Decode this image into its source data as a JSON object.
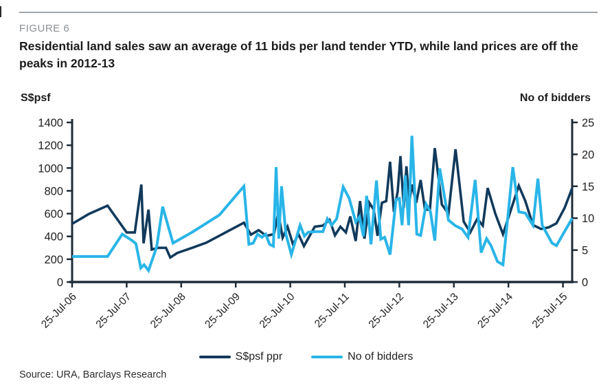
{
  "figure_label": "FIGURE 6",
  "title": "Residential land sales saw an average of 11 bids per land tender YTD, while land prices are off the peaks in 2012-13",
  "source": "Source: URA, Barclays Research",
  "colors": {
    "psf_line": "#113a5b",
    "bidders_line": "#29b5e8",
    "axis": "#1e2c38",
    "tick_text": "#1f1f1f",
    "figure_label": "#8b9094",
    "rule": "#a0a4a8"
  },
  "chart_data": {
    "type": "line",
    "title": "Residential land sales: price vs bids per land tender",
    "x_unit": "years since 25-Jul-06",
    "grid": false,
    "legend_position": "bottom-center",
    "x_tick_labels": [
      "25-Jul-06",
      "25-Jul-07",
      "25-Jul-08",
      "25-Jul-09",
      "25-Jul-10",
      "25-Jul-11",
      "25-Jul-12",
      "25-Jul-13",
      "25-Jul-14",
      "25-Jul-15"
    ],
    "left_axis": {
      "label": "S$psf",
      "min": 0,
      "max": 1400,
      "step": 200,
      "tick_labels": [
        "0",
        "200",
        "400",
        "600",
        "800",
        "1000",
        "1200",
        "1400"
      ]
    },
    "right_axis": {
      "label": "No of bidders",
      "min": 0,
      "max": 25,
      "step": 5,
      "tick_labels": [
        "0",
        "5",
        "10",
        "15",
        "20",
        "25"
      ]
    },
    "legend": [
      "S$psf ppr",
      "No of bidders"
    ],
    "series": [
      {
        "name": "S$psf ppr",
        "axis": "left",
        "color": "#113a5b",
        "points": [
          [
            0,
            510
          ],
          [
            0.3,
            595
          ],
          [
            0.65,
            670
          ],
          [
            1.0,
            435
          ],
          [
            1.15,
            435
          ],
          [
            1.27,
            855
          ],
          [
            1.31,
            340
          ],
          [
            1.4,
            635
          ],
          [
            1.46,
            285
          ],
          [
            1.58,
            300
          ],
          [
            1.72,
            300
          ],
          [
            1.8,
            215
          ],
          [
            1.93,
            255
          ],
          [
            2.2,
            300
          ],
          [
            2.46,
            345
          ],
          [
            3.15,
            520
          ],
          [
            3.28,
            415
          ],
          [
            3.42,
            455
          ],
          [
            3.56,
            405
          ],
          [
            3.7,
            420
          ],
          [
            3.78,
            605
          ],
          [
            3.86,
            390
          ],
          [
            3.95,
            485
          ],
          [
            4.05,
            330
          ],
          [
            4.15,
            420
          ],
          [
            4.25,
            315
          ],
          [
            4.45,
            485
          ],
          [
            4.6,
            495
          ],
          [
            4.72,
            545
          ],
          [
            4.82,
            410
          ],
          [
            4.92,
            485
          ],
          [
            5.02,
            435
          ],
          [
            5.1,
            575
          ],
          [
            5.2,
            360
          ],
          [
            5.28,
            710
          ],
          [
            5.36,
            380
          ],
          [
            5.45,
            695
          ],
          [
            5.53,
            635
          ],
          [
            5.6,
            405
          ],
          [
            5.68,
            695
          ],
          [
            5.76,
            710
          ],
          [
            5.83,
            1055
          ],
          [
            5.9,
            615
          ],
          [
            5.97,
            795
          ],
          [
            6.02,
            1105
          ],
          [
            6.08,
            650
          ],
          [
            6.13,
            1015
          ],
          [
            6.18,
            695
          ],
          [
            6.23,
            855
          ],
          [
            6.31,
            695
          ],
          [
            6.39,
            895
          ],
          [
            6.47,
            635
          ],
          [
            6.56,
            635
          ],
          [
            6.65,
            1175
          ],
          [
            6.78,
            680
          ],
          [
            6.9,
            600
          ],
          [
            7.03,
            1165
          ],
          [
            7.18,
            530
          ],
          [
            7.3,
            435
          ],
          [
            7.43,
            555
          ],
          [
            7.53,
            495
          ],
          [
            7.62,
            825
          ],
          [
            7.76,
            600
          ],
          [
            7.9,
            420
          ],
          [
            8.19,
            845
          ],
          [
            8.31,
            710
          ],
          [
            8.45,
            500
          ],
          [
            8.6,
            465
          ],
          [
            8.74,
            480
          ],
          [
            8.88,
            515
          ],
          [
            9.03,
            650
          ],
          [
            9.17,
            825
          ]
        ]
      },
      {
        "name": "No of bidders",
        "axis": "right",
        "color": "#29b5e8",
        "points": [
          [
            0,
            4
          ],
          [
            0.65,
            4
          ],
          [
            0.92,
            7.5
          ],
          [
            1.1,
            6.5
          ],
          [
            1.17,
            6.0
          ],
          [
            1.26,
            2.2
          ],
          [
            1.32,
            2.7
          ],
          [
            1.4,
            1.8
          ],
          [
            1.55,
            5.5
          ],
          [
            1.66,
            11.8
          ],
          [
            1.85,
            6.1
          ],
          [
            2.2,
            7.8
          ],
          [
            2.7,
            10.5
          ],
          [
            3.15,
            15
          ],
          [
            3.24,
            5.9
          ],
          [
            3.32,
            6.1
          ],
          [
            3.4,
            7.5
          ],
          [
            3.48,
            7.0
          ],
          [
            3.55,
            7.5
          ],
          [
            3.62,
            5.9
          ],
          [
            3.69,
            5.6
          ],
          [
            3.74,
            18
          ],
          [
            3.79,
            6.8
          ],
          [
            3.84,
            15
          ],
          [
            3.92,
            7.5
          ],
          [
            4.02,
            4.3
          ],
          [
            4.18,
            8.9
          ],
          [
            4.26,
            7.2
          ],
          [
            4.33,
            7.8
          ],
          [
            4.47,
            7.9
          ],
          [
            4.6,
            7.9
          ],
          [
            4.68,
            9.9
          ],
          [
            4.76,
            8.9
          ],
          [
            4.85,
            9.9
          ],
          [
            4.97,
            14.9
          ],
          [
            5.08,
            13.1
          ],
          [
            5.2,
            9.4
          ],
          [
            5.27,
            10.2
          ],
          [
            5.34,
            7.2
          ],
          [
            5.4,
            13.5
          ],
          [
            5.48,
            5.9
          ],
          [
            5.58,
            15.9
          ],
          [
            5.66,
            6.7
          ],
          [
            5.73,
            7.0
          ],
          [
            5.83,
            4.3
          ],
          [
            5.94,
            12.9
          ],
          [
            6.0,
            13.1
          ],
          [
            6.05,
            8.9
          ],
          [
            6.11,
            16.7
          ],
          [
            6.17,
            8.9
          ],
          [
            6.23,
            22.9
          ],
          [
            6.32,
            7.5
          ],
          [
            6.39,
            7.3
          ],
          [
            6.49,
            12.2
          ],
          [
            6.57,
            11.0
          ],
          [
            6.65,
            6.5
          ],
          [
            6.74,
            17.8
          ],
          [
            6.9,
            9.7
          ],
          [
            7.03,
            8.8
          ],
          [
            7.15,
            8.3
          ],
          [
            7.26,
            7.0
          ],
          [
            7.39,
            16.0
          ],
          [
            7.5,
            4.6
          ],
          [
            7.6,
            6.8
          ],
          [
            7.68,
            5.7
          ],
          [
            7.8,
            3.2
          ],
          [
            7.9,
            2.7
          ],
          [
            8.08,
            18.0
          ],
          [
            8.19,
            11.0
          ],
          [
            8.31,
            10.8
          ],
          [
            8.45,
            8.9
          ],
          [
            8.54,
            16.2
          ],
          [
            8.62,
            8.9
          ],
          [
            8.8,
            6.1
          ],
          [
            8.88,
            5.7
          ],
          [
            9.17,
            10.0
          ]
        ]
      }
    ]
  }
}
